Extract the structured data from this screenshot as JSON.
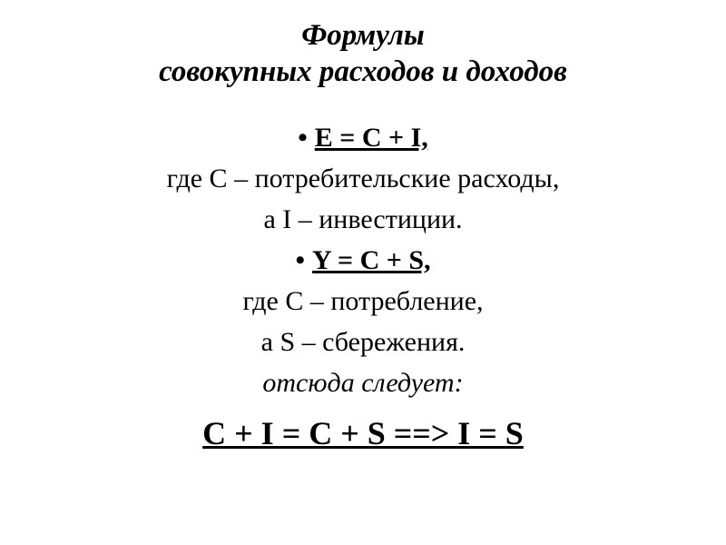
{
  "title_line1": "Формулы",
  "title_line2": "совокупных расходов и доходов",
  "formula1": "E = C + I,",
  "desc1": "где С – потребительские расходы,",
  "desc1b": "а I – инвестиции.",
  "formula2": "Y = C + S,",
  "desc2": "где С – потребление,",
  "desc2b": "а S – сбережения.",
  "note": "отсюда следует:",
  "final": "C + I = C + S ==> I = S",
  "colors": {
    "background": "#ffffff",
    "text": "#000000"
  },
  "typography": {
    "title_fontsize_pt": 25,
    "body_fontsize_pt": 22,
    "final_fontsize_pt": 27,
    "font_family": "serif",
    "title_style": "bold italic",
    "formula_style": "bold underline",
    "note_style": "italic",
    "final_style": "bold underline"
  }
}
